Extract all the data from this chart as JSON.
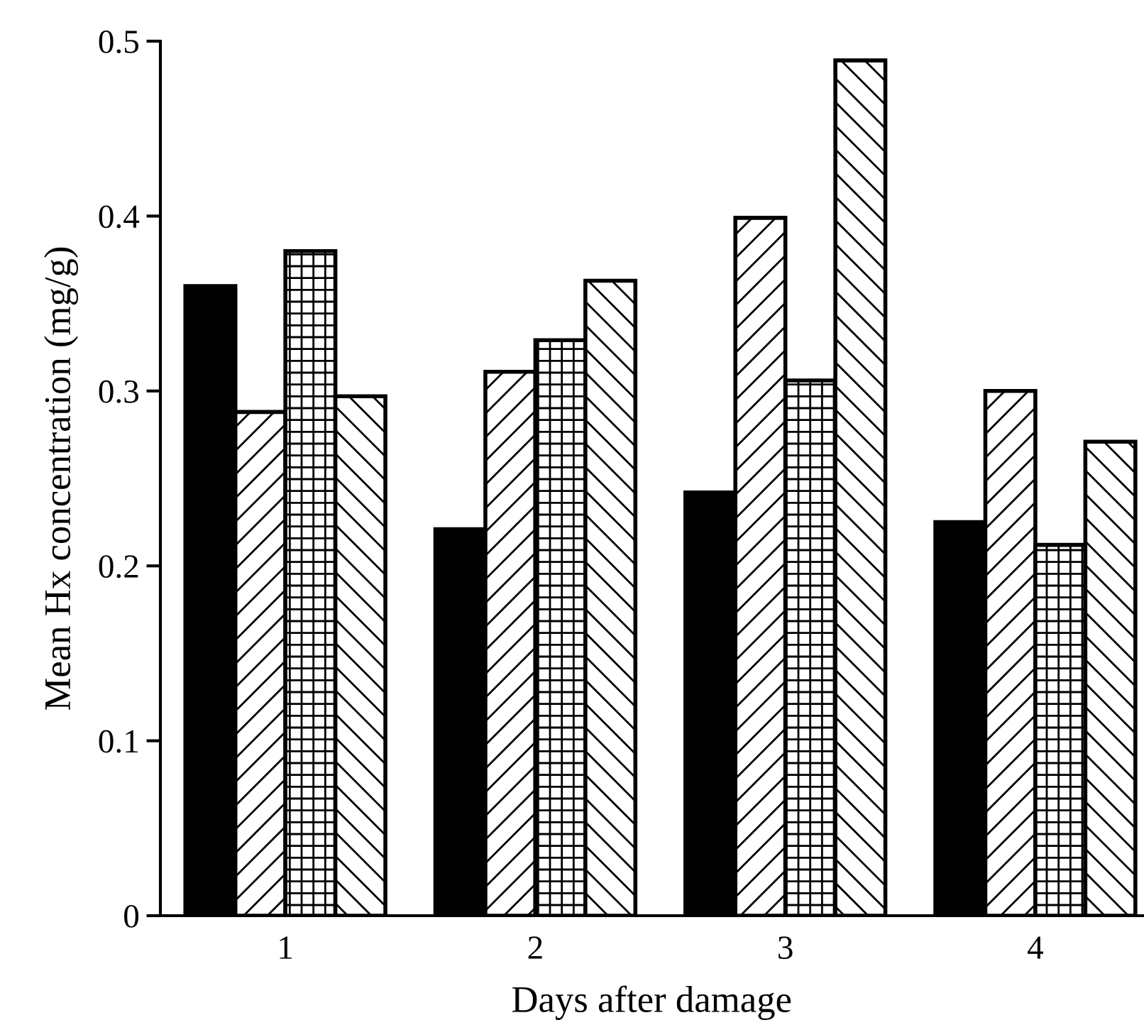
{
  "chart_data": {
    "type": "bar",
    "xlabel": "Days after damage",
    "ylabel": "Mean Hx concentration (mg/g)",
    "categories": [
      "1",
      "2",
      "3",
      "4"
    ],
    "series": [
      {
        "color": "#000000",
        "values": [
          0.36,
          0.221,
          0.242,
          0.225
        ]
      },
      {
        "color": "#000000",
        "values": [
          0.288,
          0.311,
          0.399,
          0.3
        ]
      },
      {
        "color": "#000000",
        "values": [
          0.38,
          0.329,
          0.306,
          0.212
        ]
      },
      {
        "color": "#000000",
        "values": [
          0.297,
          0.363,
          0.489,
          0.271
        ]
      }
    ],
    "ylim": [
      0,
      0.5
    ],
    "yticks": [
      {
        "value": 0,
        "label": "0"
      },
      0.1,
      0.2,
      0.3,
      0.4,
      0.5
    ],
    "grid": false
  }
}
